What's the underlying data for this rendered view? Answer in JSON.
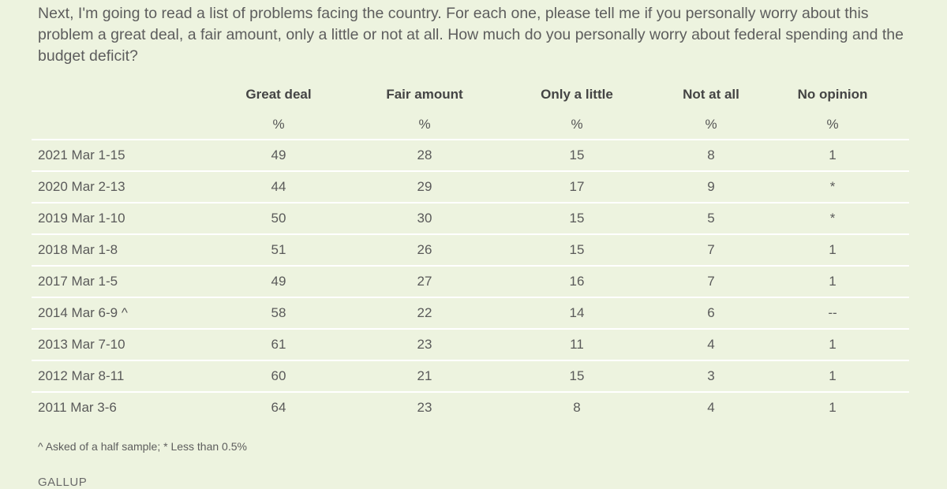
{
  "question": "Next, I'm going to read a list of problems facing the country. For each one, please tell me if you personally worry about this problem a great deal, a fair amount, only a little or not at all. How much do you personally worry about federal spending and the budget deficit?",
  "table": {
    "columns": [
      "Great deal",
      "Fair amount",
      "Only a little",
      "Not at all",
      "No opinion"
    ],
    "unit": "%",
    "rows": [
      {
        "label": "2021 Mar 1-15",
        "values": [
          "49",
          "28",
          "15",
          "8",
          "1"
        ]
      },
      {
        "label": "2020 Mar 2-13",
        "values": [
          "44",
          "29",
          "17",
          "9",
          "*"
        ]
      },
      {
        "label": "2019 Mar 1-10",
        "values": [
          "50",
          "30",
          "15",
          "5",
          "*"
        ]
      },
      {
        "label": "2018 Mar 1-8",
        "values": [
          "51",
          "26",
          "15",
          "7",
          "1"
        ]
      },
      {
        "label": "2017 Mar 1-5",
        "values": [
          "49",
          "27",
          "16",
          "7",
          "1"
        ]
      },
      {
        "label": "2014 Mar 6-9 ^",
        "values": [
          "58",
          "22",
          "14",
          "6",
          "--"
        ]
      },
      {
        "label": "2013 Mar 7-10",
        "values": [
          "61",
          "23",
          "11",
          "4",
          "1"
        ]
      },
      {
        "label": "2012 Mar 8-11",
        "values": [
          "60",
          "21",
          "15",
          "3",
          "1"
        ]
      },
      {
        "label": "2011 Mar 3-6",
        "values": [
          "64",
          "23",
          "8",
          "4",
          "1"
        ]
      }
    ]
  },
  "footnote": "^ Asked of a half sample; * Less than 0.5%",
  "brand": "GALLUP"
}
